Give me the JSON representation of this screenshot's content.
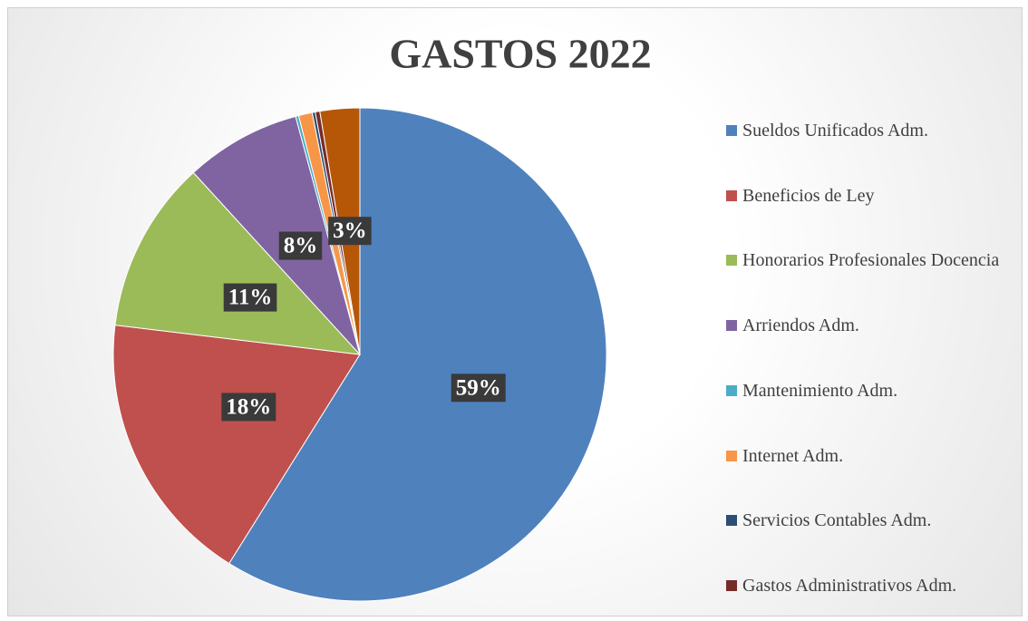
{
  "chart_data": {
    "type": "pie",
    "title": "GASTOS 2022",
    "categories": [
      "Sueldos Unificados Adm.",
      "Beneficios de Ley",
      "Honorarios Profesionales Docencia",
      "Arriendos Adm.",
      "Mantenimiento Adm.",
      "Internet Adm.",
      "Servicios Contables Adm.",
      "Gastos Administrativos Adm.",
      null
    ],
    "values": [
      58.9,
      18,
      11.3,
      7.6,
      0.2,
      0.9,
      0.2,
      0.3,
      2.6
    ],
    "value_labels": [
      "59%",
      "18%",
      "11%",
      "8%",
      null,
      null,
      null,
      null,
      "3%"
    ],
    "colors": [
      "#4f81bd",
      "#c0504d",
      "#9bbb59",
      "#8064a2",
      "#4bacc6",
      "#f79646",
      "#2c4d75",
      "#772c2a",
      "#b65708"
    ],
    "legend": "right"
  }
}
